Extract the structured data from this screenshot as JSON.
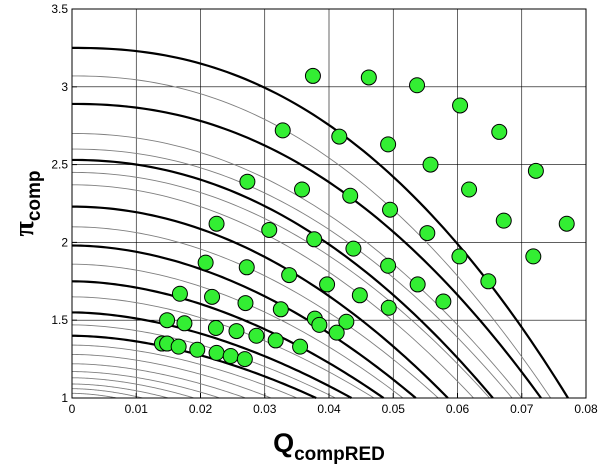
{
  "chart_data": {
    "type": "scatter",
    "xlabel": "Q",
    "xlabel_sub": "compRED",
    "ylabel": "π",
    "ylabel_sub": "comp",
    "xlim": [
      0,
      0.08
    ],
    "ylim": [
      1,
      3.5
    ],
    "x_ticks": [
      0,
      0.01,
      0.02,
      0.03,
      0.04,
      0.05,
      0.06,
      0.07,
      0.08
    ],
    "x_tick_labels": [
      "0",
      "0.01",
      "0.02",
      "0.03",
      "0.04",
      "0.05",
      "0.06",
      "0.07",
      "0.08"
    ],
    "y_ticks": [
      1,
      1.5,
      2,
      2.5,
      3,
      3.5
    ],
    "y_tick_labels": [
      "1",
      "1.5",
      "2",
      "2.5",
      "3",
      "3.5"
    ],
    "grid": true,
    "colors": {
      "marker_fill": "#33ee33",
      "marker_edge": "#000000",
      "thick_line": "#000000",
      "thin_line": "#7f7f7f",
      "grid": "#000000"
    },
    "speed_lines_thick": [
      {
        "pressure_ratio_at_zero_flow": 3.25,
        "choke_flow": 0.0772,
        "p_exponent": 2.3
      },
      {
        "pressure_ratio_at_zero_flow": 2.89,
        "choke_flow": 0.073,
        "p_exponent": 2.2
      },
      {
        "pressure_ratio_at_zero_flow": 2.53,
        "choke_flow": 0.0655,
        "p_exponent": 2.1
      },
      {
        "pressure_ratio_at_zero_flow": 2.23,
        "choke_flow": 0.0585,
        "p_exponent": 2.0
      },
      {
        "pressure_ratio_at_zero_flow": 1.98,
        "choke_flow": 0.0535,
        "p_exponent": 1.9
      },
      {
        "pressure_ratio_at_zero_flow": 1.75,
        "choke_flow": 0.0485,
        "p_exponent": 1.85
      },
      {
        "pressure_ratio_at_zero_flow": 1.55,
        "choke_flow": 0.0435,
        "p_exponent": 1.8
      },
      {
        "pressure_ratio_at_zero_flow": 1.4,
        "choke_flow": 0.038,
        "p_exponent": 1.8
      }
    ],
    "speed_lines_thin": [
      {
        "pressure_ratio_at_zero_flow": 3.07,
        "choke_flow": 0.0745,
        "p_exponent": 2.2
      },
      {
        "pressure_ratio_at_zero_flow": 2.7,
        "choke_flow": 0.07,
        "p_exponent": 2.1
      },
      {
        "pressure_ratio_at_zero_flow": 2.6,
        "choke_flow": 0.0685,
        "p_exponent": 2.1
      },
      {
        "pressure_ratio_at_zero_flow": 2.45,
        "choke_flow": 0.065,
        "p_exponent": 2.05
      },
      {
        "pressure_ratio_at_zero_flow": 2.37,
        "choke_flow": 0.0625,
        "p_exponent": 2.0
      },
      {
        "pressure_ratio_at_zero_flow": 2.1,
        "choke_flow": 0.057,
        "p_exponent": 1.95
      },
      {
        "pressure_ratio_at_zero_flow": 1.86,
        "choke_flow": 0.0515,
        "p_exponent": 1.9
      },
      {
        "pressure_ratio_at_zero_flow": 1.65,
        "choke_flow": 0.047,
        "p_exponent": 1.85
      },
      {
        "pressure_ratio_at_zero_flow": 1.47,
        "choke_flow": 0.041,
        "p_exponent": 1.8
      },
      {
        "pressure_ratio_at_zero_flow": 1.34,
        "choke_flow": 0.035,
        "p_exponent": 1.8
      },
      {
        "pressure_ratio_at_zero_flow": 1.28,
        "choke_flow": 0.031,
        "p_exponent": 1.8
      },
      {
        "pressure_ratio_at_zero_flow": 1.22,
        "choke_flow": 0.027,
        "p_exponent": 1.8
      },
      {
        "pressure_ratio_at_zero_flow": 1.17,
        "choke_flow": 0.023,
        "p_exponent": 1.8
      },
      {
        "pressure_ratio_at_zero_flow": 1.13,
        "choke_flow": 0.019,
        "p_exponent": 1.8
      },
      {
        "pressure_ratio_at_zero_flow": 1.09,
        "choke_flow": 0.015,
        "p_exponent": 1.8
      },
      {
        "pressure_ratio_at_zero_flow": 1.06,
        "choke_flow": 0.011,
        "p_exponent": 1.8
      },
      {
        "pressure_ratio_at_zero_flow": 1.03,
        "choke_flow": 0.007,
        "p_exponent": 1.8
      }
    ],
    "points": [
      {
        "x": 0.0375,
        "y": 3.07
      },
      {
        "x": 0.0462,
        "y": 3.06
      },
      {
        "x": 0.0537,
        "y": 3.01
      },
      {
        "x": 0.0604,
        "y": 2.88
      },
      {
        "x": 0.0665,
        "y": 2.71
      },
      {
        "x": 0.0722,
        "y": 2.46
      },
      {
        "x": 0.077,
        "y": 2.12
      },
      {
        "x": 0.0328,
        "y": 2.72
      },
      {
        "x": 0.0416,
        "y": 2.68
      },
      {
        "x": 0.0492,
        "y": 2.63
      },
      {
        "x": 0.0558,
        "y": 2.5
      },
      {
        "x": 0.0618,
        "y": 2.34
      },
      {
        "x": 0.0672,
        "y": 2.14
      },
      {
        "x": 0.0718,
        "y": 1.91
      },
      {
        "x": 0.0273,
        "y": 2.39
      },
      {
        "x": 0.0358,
        "y": 2.34
      },
      {
        "x": 0.0433,
        "y": 2.3
      },
      {
        "x": 0.0495,
        "y": 2.21
      },
      {
        "x": 0.0553,
        "y": 2.06
      },
      {
        "x": 0.0603,
        "y": 1.91
      },
      {
        "x": 0.0648,
        "y": 1.75
      },
      {
        "x": 0.0225,
        "y": 2.12
      },
      {
        "x": 0.0307,
        "y": 2.08
      },
      {
        "x": 0.0377,
        "y": 2.02
      },
      {
        "x": 0.0438,
        "y": 1.96
      },
      {
        "x": 0.0492,
        "y": 1.85
      },
      {
        "x": 0.0538,
        "y": 1.73
      },
      {
        "x": 0.0578,
        "y": 1.62
      },
      {
        "x": 0.0208,
        "y": 1.87
      },
      {
        "x": 0.0272,
        "y": 1.84
      },
      {
        "x": 0.0338,
        "y": 1.79
      },
      {
        "x": 0.0397,
        "y": 1.73
      },
      {
        "x": 0.0448,
        "y": 1.66
      },
      {
        "x": 0.0493,
        "y": 1.58
      },
      {
        "x": 0.0168,
        "y": 1.67
      },
      {
        "x": 0.0218,
        "y": 1.65
      },
      {
        "x": 0.027,
        "y": 1.61
      },
      {
        "x": 0.0325,
        "y": 1.57
      },
      {
        "x": 0.0378,
        "y": 1.51
      },
      {
        "x": 0.0427,
        "y": 1.49
      },
      {
        "x": 0.0148,
        "y": 1.5
      },
      {
        "x": 0.0175,
        "y": 1.48
      },
      {
        "x": 0.0224,
        "y": 1.45
      },
      {
        "x": 0.0256,
        "y": 1.43
      },
      {
        "x": 0.0287,
        "y": 1.4
      },
      {
        "x": 0.0317,
        "y": 1.37
      },
      {
        "x": 0.0355,
        "y": 1.33
      },
      {
        "x": 0.0385,
        "y": 1.47
      },
      {
        "x": 0.0412,
        "y": 1.42
      },
      {
        "x": 0.014,
        "y": 1.35
      },
      {
        "x": 0.0148,
        "y": 1.35
      },
      {
        "x": 0.0166,
        "y": 1.33
      },
      {
        "x": 0.0195,
        "y": 1.31
      },
      {
        "x": 0.0225,
        "y": 1.29
      },
      {
        "x": 0.0247,
        "y": 1.27
      },
      {
        "x": 0.0269,
        "y": 1.25
      }
    ]
  }
}
